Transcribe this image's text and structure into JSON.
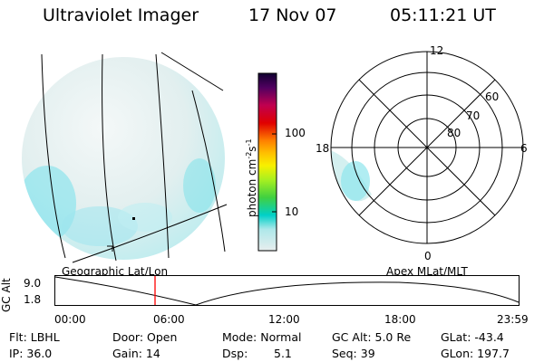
{
  "header": {
    "instrument": "Ultraviolet Imager",
    "date": "17 Nov 07",
    "time": "05:11:21 UT"
  },
  "colorbar": {
    "unit_label": "photon cm",
    "unit_sup1": "-2",
    "unit_mid": "s",
    "unit_sup2": "-1",
    "tick_100": "100",
    "tick_10": "10"
  },
  "polar_plot": {
    "mlt_top": "12",
    "mlt_left": "18",
    "mlt_right": "6",
    "mlt_bottom": "0",
    "lat_60": "60",
    "lat_70": "70",
    "lat_80": "80"
  },
  "map_labels": {
    "left": "Geographic Lat/Lon",
    "right": "Apex MLat/MLT"
  },
  "orbit_plot": {
    "ylabel": "GC Alt",
    "ytick_top": "9.0",
    "ytick_bottom": "1.8",
    "xticks": [
      "00:00",
      "06:00",
      "12:00",
      "18:00",
      "23:59"
    ],
    "current_marker_color": "#ff0000"
  },
  "info": {
    "filter": "Flt: LBHL",
    "ip": "IP: 36.0",
    "door": "Door: Open",
    "gain": "Gain: 14",
    "mode": "Mode: Normal",
    "dsp_label": "Dsp:",
    "dsp_value": "5.1",
    "gc_alt": "GC Alt: 5.0 Re",
    "seq": "Seq: 39",
    "glat": "GLat: -43.4",
    "glon": "GLon: 197.7"
  }
}
